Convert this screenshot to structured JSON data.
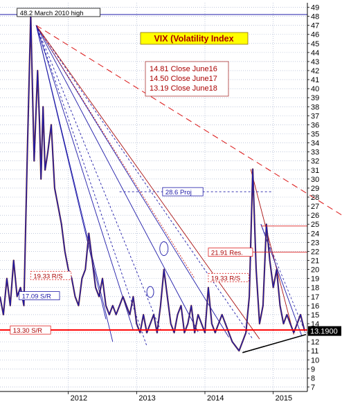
{
  "chart_data": {
    "type": "line",
    "title": "VIX (Volatility Index",
    "ylim": [
      6.5,
      49.5
    ],
    "xlim": [
      2011.0,
      2015.5
    ],
    "y_ticks": [
      7,
      8,
      9,
      10,
      11,
      12,
      13,
      14,
      15,
      16,
      17,
      18,
      19,
      20,
      21,
      22,
      23,
      24,
      25,
      26,
      27,
      28,
      29,
      30,
      31,
      32,
      33,
      34,
      35,
      36,
      37,
      38,
      39,
      40,
      41,
      42,
      43,
      44,
      45,
      46,
      47,
      48,
      49
    ],
    "x_ticks": [
      {
        "label": "2012",
        "x": 2012.0
      },
      {
        "label": "2013",
        "x": 2013.0
      },
      {
        "label": "2014",
        "x": 2014.0
      },
      {
        "label": "2015",
        "x": 2015.0
      }
    ],
    "last_value_label": "13.1900",
    "last_value": 13.19,
    "close_notes": [
      "14.81 Close June16",
      "14.50 Close June17",
      "13.19 Close June18"
    ],
    "series": [
      {
        "x": [
          2011.0,
          2011.05,
          2011.1,
          2011.15,
          2011.2,
          2011.25,
          2011.3,
          2011.35,
          2011.4,
          2011.45,
          2011.5,
          2011.55,
          2011.58,
          2011.6,
          2011.63,
          2011.66,
          2011.7,
          2011.75,
          2011.8,
          2011.85,
          2011.9,
          2011.95,
          2012.0,
          2012.05,
          2012.1,
          2012.15,
          2012.2,
          2012.25,
          2012.3,
          2012.35,
          2012.4,
          2012.45,
          2012.5,
          2012.55,
          2012.6,
          2012.65,
          2012.7,
          2012.75,
          2012.8,
          2012.85,
          2012.9,
          2012.95,
          2013.0,
          2013.05,
          2013.1,
          2013.15,
          2013.2,
          2013.25,
          2013.3,
          2013.35,
          2013.4,
          2013.45,
          2013.5,
          2013.55,
          2013.6,
          2013.65,
          2013.7,
          2013.75,
          2013.8,
          2013.85,
          2013.9,
          2013.95,
          2014.0,
          2014.05,
          2014.1,
          2014.15,
          2014.2,
          2014.25,
          2014.3,
          2014.35,
          2014.4,
          2014.45,
          2014.5,
          2014.55,
          2014.6,
          2014.65,
          2014.7,
          2014.75,
          2014.8,
          2014.85,
          2014.9,
          2014.95,
          2015.0,
          2015.05,
          2015.1,
          2015.15,
          2015.2,
          2015.25,
          2015.3,
          2015.35,
          2015.4,
          2015.46
        ],
        "values": [
          17,
          15,
          19,
          16,
          21,
          17,
          18,
          16,
          33,
          48.2,
          32,
          42,
          36,
          30,
          38,
          31,
          33,
          36,
          29,
          27,
          25,
          22,
          20,
          19,
          17,
          16,
          19,
          20,
          24,
          21,
          18,
          17,
          19,
          16,
          15,
          16,
          15,
          16,
          17,
          16,
          15,
          17,
          14,
          13,
          15,
          13,
          14,
          15,
          13,
          16,
          20,
          17,
          14,
          13,
          15,
          16,
          13,
          14,
          16,
          13,
          15,
          14,
          13,
          18,
          14,
          13,
          14,
          15,
          14,
          13,
          12,
          11.5,
          11,
          12,
          13,
          17,
          31.1,
          20,
          14,
          16,
          25,
          21,
          18,
          20,
          16,
          14,
          15,
          14,
          13,
          14,
          15,
          13.19
        ]
      }
    ],
    "annotations": [
      {
        "text": "48.2 March 2010 high",
        "y": 48.2
      },
      {
        "text": "28.6 Proj",
        "y": 28.6
      },
      {
        "text": "21.91 Res.",
        "y": 21.91
      },
      {
        "text": "19.33 R/S",
        "y": 19.33
      },
      {
        "text": "19.33 R/S",
        "y": 19.33
      },
      {
        "text": "17.09 S/R",
        "y": 17.09
      },
      {
        "text": "13.30 S/R",
        "y": 13.3
      }
    ],
    "colors": {
      "price_line": "#1e1aa8",
      "price_dn": "#8b3a1a",
      "fan_line": "#1e1aa8",
      "trend_line": "#dd2222",
      "support_line": "#ff0000",
      "label_bg": "#ffff00",
      "label_text": "#aa0000",
      "tag_bg": "#000000"
    }
  }
}
